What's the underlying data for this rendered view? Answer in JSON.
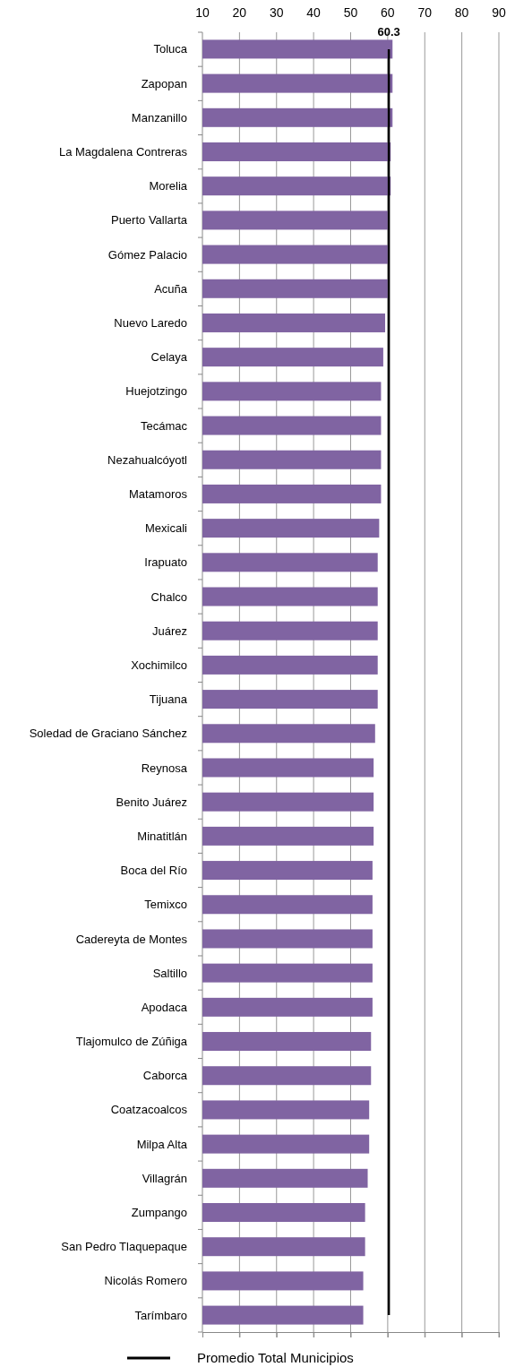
{
  "chart_data": {
    "type": "bar",
    "orientation": "horizontal",
    "categories": [
      "Toluca",
      "Zapopan",
      "Manzanillo",
      "La Magdalena Contreras",
      "Morelia",
      "Puerto Vallarta",
      "Gómez Palacio",
      "Acuña",
      "Nuevo Laredo",
      "Celaya",
      "Huejotzingo",
      "Tecámac",
      "Nezahualcóyotl",
      "Matamoros",
      "Mexicali",
      "Irapuato",
      "Chalco",
      "Juárez",
      "Xochimilco",
      "Tijuana",
      "Soledad de Graciano Sánchez",
      "Reynosa",
      "Benito Juárez",
      "Minatitlán",
      "Boca del Río",
      "Temixco",
      "Cadereyta de Montes",
      "Saltillo",
      "Apodaca",
      "Tlajomulco de Zúñiga",
      "Caborca",
      "Coatzacoalcos",
      "Milpa Alta",
      "Villagrán",
      "Zumpango",
      "San Pedro Tlaquepaque",
      "Nicolás Romero",
      "Tarímbaro"
    ],
    "series": [
      {
        "color": "#8064a2",
        "values": [
          61.3,
          61.3,
          61.3,
          60.8,
          60.8,
          60.0,
          60.0,
          60.0,
          59.3,
          58.8,
          58.2,
          58.2,
          58.2,
          58.2,
          57.7,
          57.3,
          57.3,
          57.3,
          57.3,
          57.3,
          56.6,
          56.2,
          56.2,
          56.2,
          55.9,
          55.9,
          55.9,
          55.9,
          55.9,
          55.5,
          55.5,
          55.0,
          55.0,
          54.6,
          53.9,
          53.9,
          53.4,
          53.4
        ]
      },
      {
        "type": "line",
        "name": "Promedio Total Municipios",
        "color": "#000000",
        "marker": "none",
        "values": [
          60.3,
          60.3,
          60.3,
          60.3,
          60.3,
          60.3,
          60.3,
          60.3,
          60.3,
          60.3,
          60.3,
          60.3,
          60.3,
          60.3,
          60.3,
          60.3,
          60.3,
          60.3,
          60.3,
          60.3,
          60.3,
          60.3,
          60.3,
          60.3,
          60.3,
          60.3,
          60.3,
          60.3,
          60.3,
          60.3,
          60.3,
          60.3,
          60.3,
          60.3,
          60.3,
          60.3,
          60.3,
          60.3
        ]
      }
    ],
    "annotations": [
      {
        "text": "60.3",
        "x": 60.3,
        "y": "Toluca"
      }
    ],
    "xlim": [
      10,
      90
    ],
    "xticks": [
      10,
      20,
      30,
      40,
      50,
      60,
      70,
      80,
      90
    ],
    "grid": "x",
    "legend": "bottom"
  }
}
